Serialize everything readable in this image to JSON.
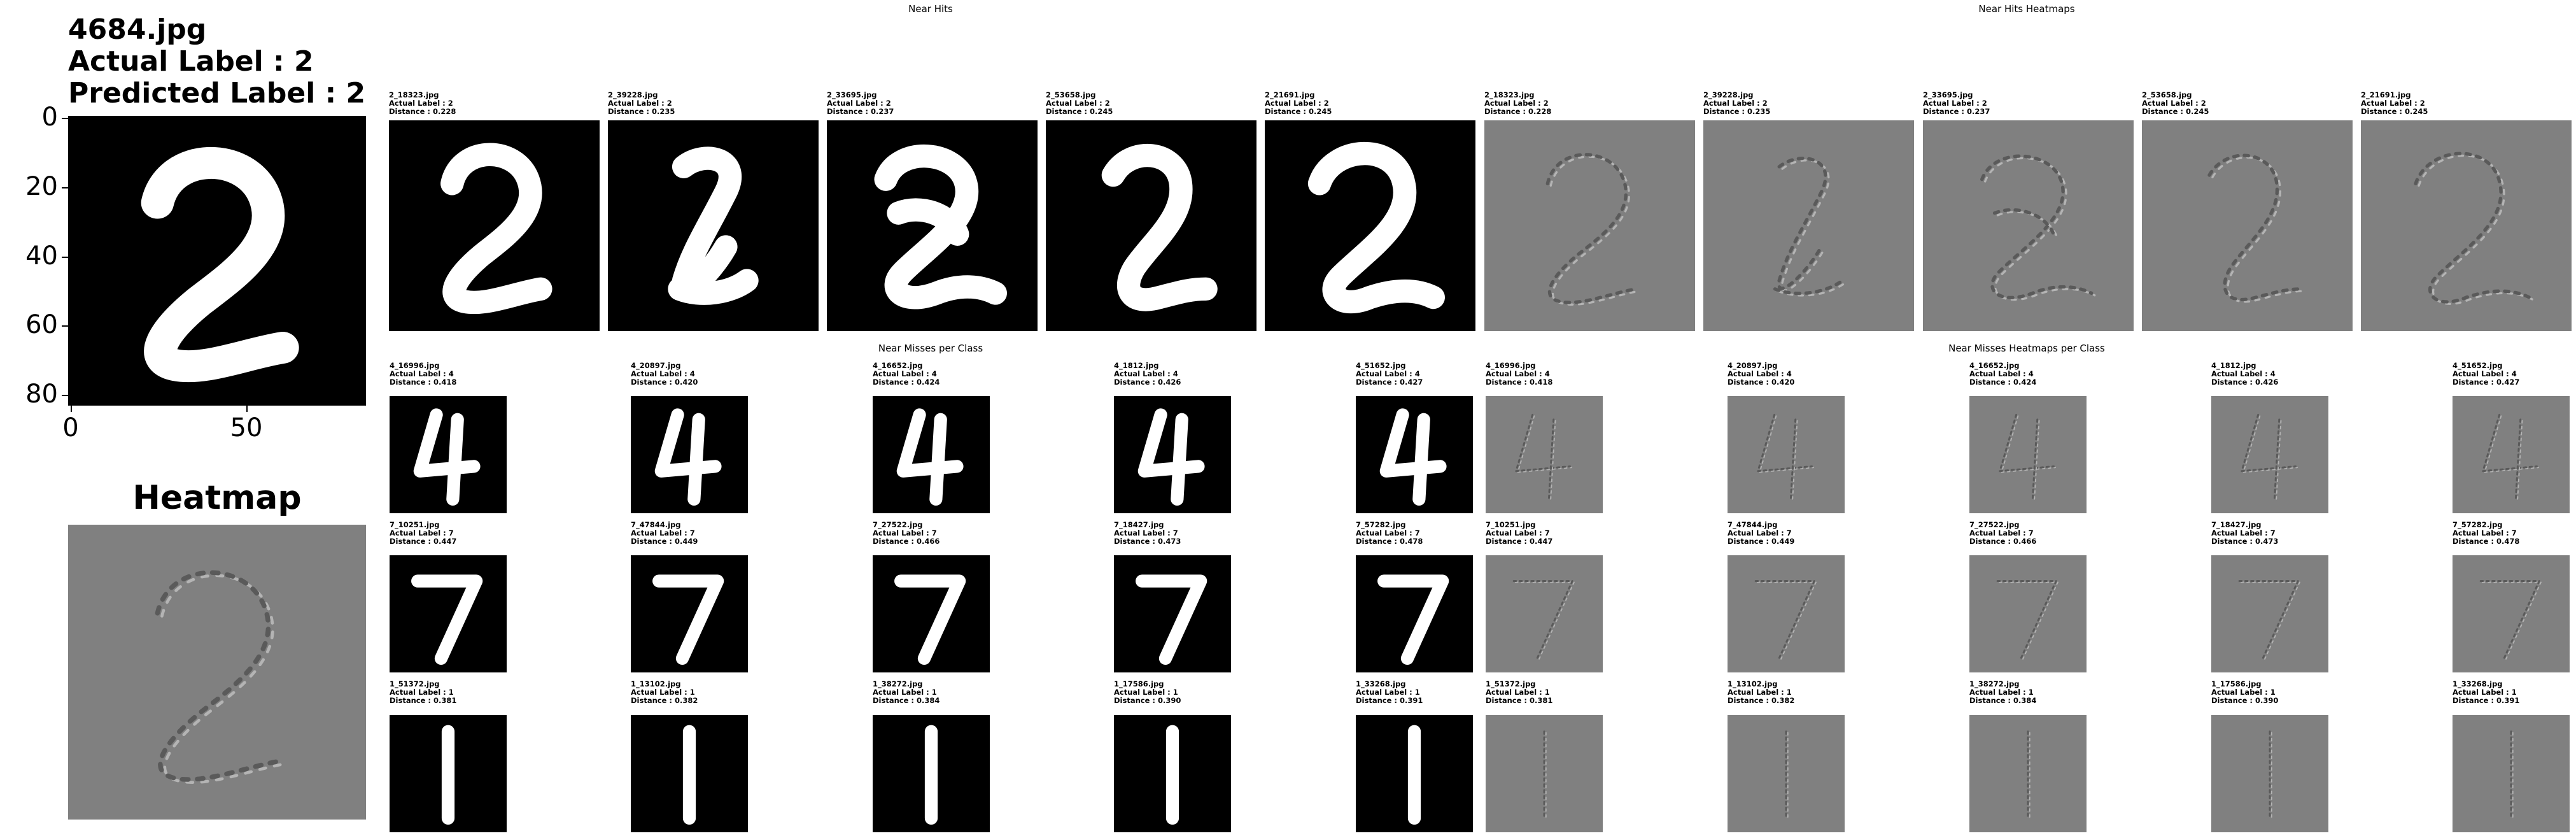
{
  "query": {
    "filename": "4684.jpg",
    "actual_label_text": "Actual Label : 2",
    "predicted_label_text": "Predicted Label : 2",
    "y_ticks": [
      "0",
      "20",
      "40",
      "60",
      "80"
    ],
    "x_ticks": [
      "0",
      "50"
    ],
    "heatmap_title": "Heatmap"
  },
  "titles": {
    "near_hits": "Near Hits",
    "near_hits_heatmaps": "Near Hits Heatmaps",
    "near_misses": "Near Misses per Class",
    "near_misses_heatmaps": "Near Misses Heatmaps per Class"
  },
  "near_hits": [
    {
      "file": "2_18323.jpg",
      "label": "Actual Label : 2",
      "distance": "Distance : 0.228",
      "digit": "2"
    },
    {
      "file": "2_39228.jpg",
      "label": "Actual Label : 2",
      "distance": "Distance : 0.235",
      "digit": "2"
    },
    {
      "file": "2_33695.jpg",
      "label": "Actual Label : 2",
      "distance": "Distance : 0.237",
      "digit": "2"
    },
    {
      "file": "2_53658.jpg",
      "label": "Actual Label : 2",
      "distance": "Distance : 0.245",
      "digit": "2"
    },
    {
      "file": "2_21691.jpg",
      "label": "Actual Label : 2",
      "distance": "Distance : 0.245",
      "digit": "2"
    }
  ],
  "near_misses": [
    [
      {
        "file": "4_16996.jpg",
        "label": "Actual Label : 4",
        "distance": "Distance : 0.418",
        "digit": "4"
      },
      {
        "file": "4_20897.jpg",
        "label": "Actual Label : 4",
        "distance": "Distance : 0.420",
        "digit": "4"
      },
      {
        "file": "4_16652.jpg",
        "label": "Actual Label : 4",
        "distance": "Distance : 0.424",
        "digit": "4"
      },
      {
        "file": "4_1812.jpg",
        "label": "Actual Label : 4",
        "distance": "Distance : 0.426",
        "digit": "4"
      },
      {
        "file": "4_51652.jpg",
        "label": "Actual Label : 4",
        "distance": "Distance : 0.427",
        "digit": "4"
      }
    ],
    [
      {
        "file": "7_10251.jpg",
        "label": "Actual Label : 7",
        "distance": "Distance : 0.447",
        "digit": "7"
      },
      {
        "file": "7_47844.jpg",
        "label": "Actual Label : 7",
        "distance": "Distance : 0.449",
        "digit": "7"
      },
      {
        "file": "7_27522.jpg",
        "label": "Actual Label : 7",
        "distance": "Distance : 0.466",
        "digit": "7"
      },
      {
        "file": "7_18427.jpg",
        "label": "Actual Label : 7",
        "distance": "Distance : 0.473",
        "digit": "7"
      },
      {
        "file": "7_57282.jpg",
        "label": "Actual Label : 7",
        "distance": "Distance : 0.478",
        "digit": "7"
      }
    ],
    [
      {
        "file": "1_51372.jpg",
        "label": "Actual Label : 1",
        "distance": "Distance : 0.381",
        "digit": "1"
      },
      {
        "file": "1_13102.jpg",
        "label": "Actual Label : 1",
        "distance": "Distance : 0.382",
        "digit": "1"
      },
      {
        "file": "1_38272.jpg",
        "label": "Actual Label : 1",
        "distance": "Distance : 0.384",
        "digit": "1"
      },
      {
        "file": "1_17586.jpg",
        "label": "Actual Label : 1",
        "distance": "Distance : 0.390",
        "digit": "1"
      },
      {
        "file": "1_33268.jpg",
        "label": "Actual Label : 1",
        "distance": "Distance : 0.391",
        "digit": "1"
      }
    ]
  ],
  "colors": {
    "digit_bg": "#000000",
    "digit_stroke": "#ffffff",
    "heatmap_bg": "#808080"
  }
}
